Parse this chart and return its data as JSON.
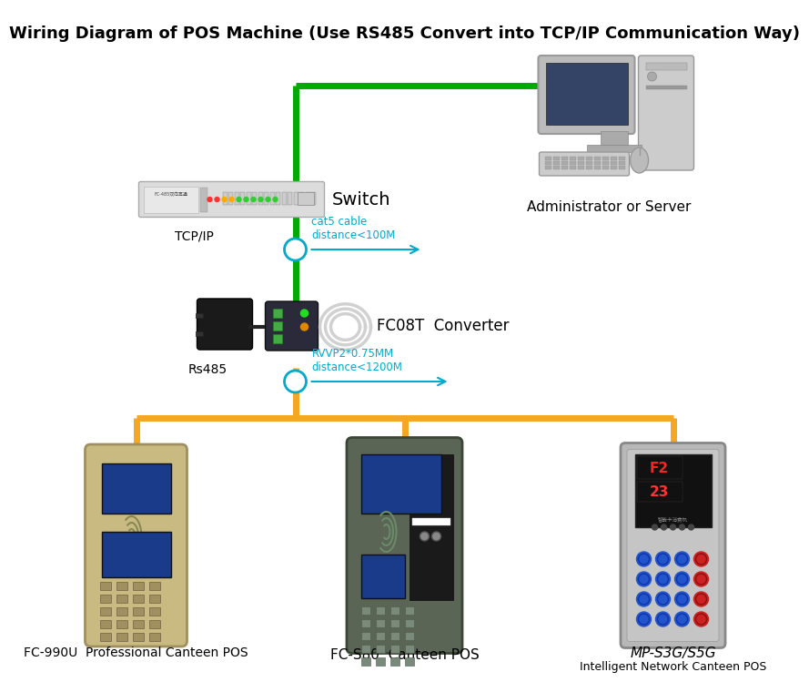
{
  "title": "Wiring Diagram of POS Machine (Use RS485 Convert into TCP/IP Communication Way)",
  "title_fontsize": 13,
  "title_fontweight": "bold",
  "bg_color": "#ffffff",
  "green_color": "#00aa00",
  "orange_color": "#f5a623",
  "cyan_color": "#00aacc",
  "text_color": "#000000",
  "label_switch": "Switch",
  "label_tcpip": "TCP/IP",
  "label_cat5": "cat5 cable\ndistance<100M",
  "label_converter": "FC08T  Converter",
  "label_rs485": "Rs485",
  "label_rvvp": "RVVP2*0.75MM\ndistance<1200M",
  "label_admin": "Administrator or Server",
  "label_pos1": "FC-990U  Professional Canteen POS",
  "label_pos2": "FC-S80  Canteen POS",
  "label_pos3": "MP-S3G/S5G",
  "label_pos3b": "Intelligent Network Canteen POS"
}
